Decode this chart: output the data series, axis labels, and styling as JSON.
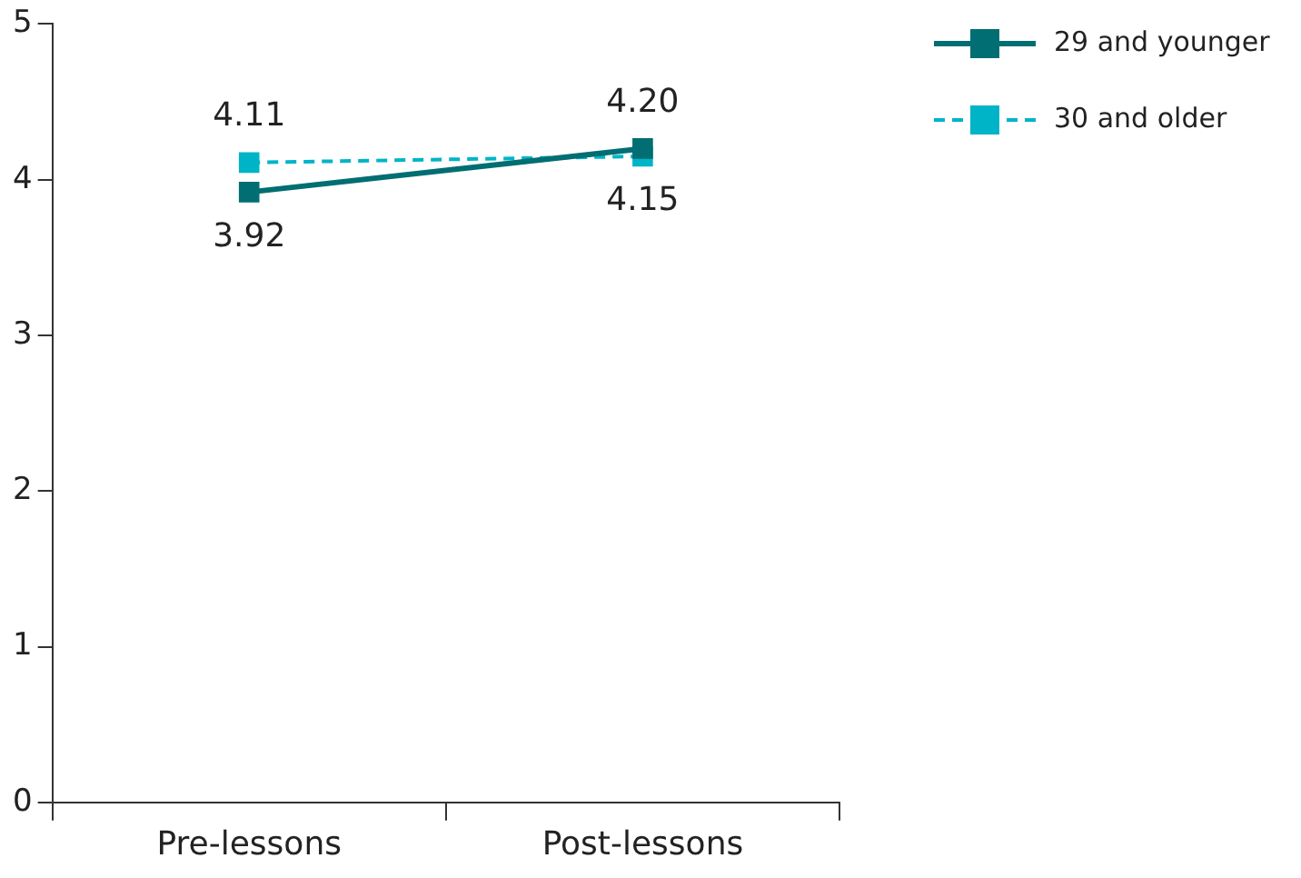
{
  "chart_data": {
    "type": "line",
    "categories": [
      "Pre-lessons",
      "Post-lessons"
    ],
    "series": [
      {
        "name": "29 and younger",
        "color": "#006e72",
        "values": [
          3.92,
          4.2
        ],
        "value_labels": [
          "3.92",
          "4.20"
        ],
        "line_style": "solid"
      },
      {
        "name": "30 and older",
        "color": "#00b4c8",
        "values": [
          4.11,
          4.15
        ],
        "value_labels": [
          "4.11",
          "4.15"
        ],
        "line_style": "dashed"
      }
    ],
    "ylim": [
      0,
      5
    ],
    "yticks": [
      0,
      1,
      2,
      3,
      4,
      5
    ],
    "grid": false,
    "legend": "top right",
    "marker": "square"
  }
}
